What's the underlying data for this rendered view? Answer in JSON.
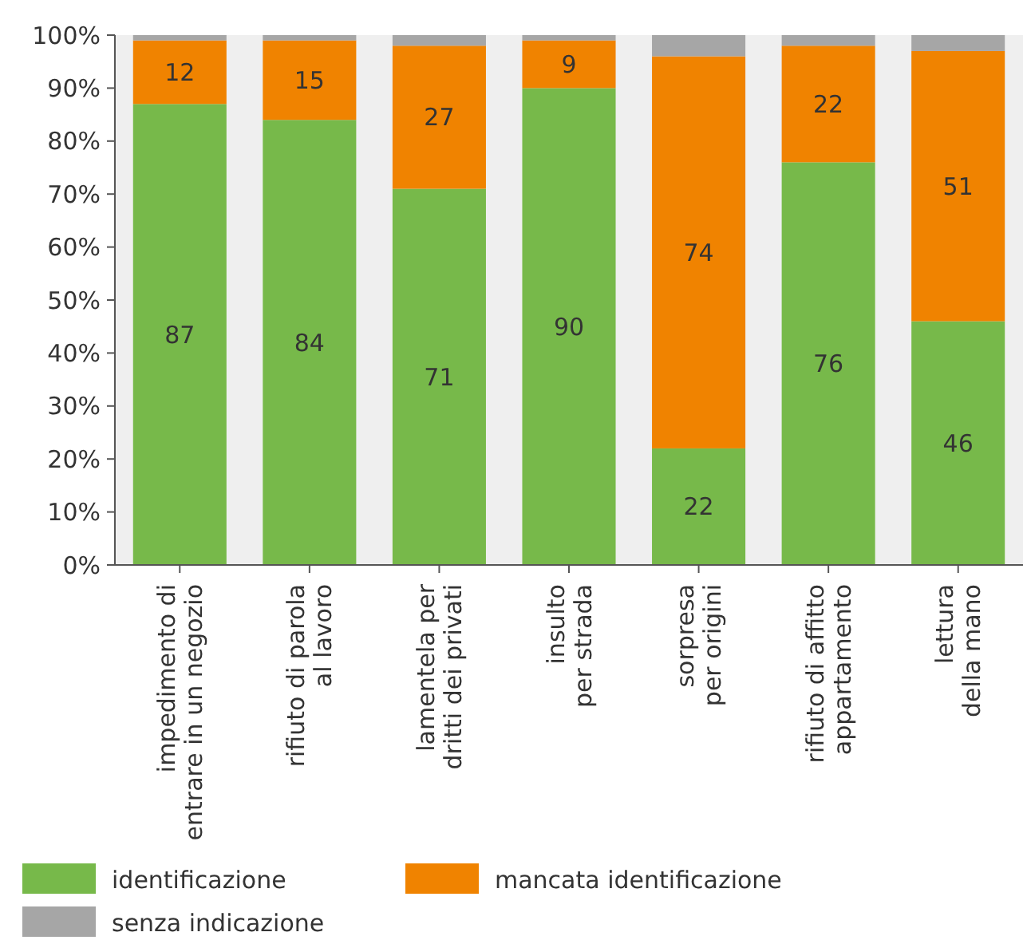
{
  "chart_data": {
    "type": "bar",
    "stacked": true,
    "categories": [
      "impedimento di\nentrare in un negozio",
      "rifiuto di parola\nal lavoro",
      "lamentela per\ndritti dei privati",
      "insulto\nper strada",
      "sorpresa\nper origini",
      "rifiuto di affitto\nappartamento",
      "lettura\ndella mano"
    ],
    "series": [
      {
        "name": "identificazione",
        "color": "#77b94a",
        "values": [
          87,
          84,
          71,
          90,
          22,
          76,
          46
        ],
        "value_labels": [
          "87",
          "84",
          "71",
          "90",
          "22",
          "76",
          "46"
        ]
      },
      {
        "name": "mancata identificazione",
        "color": "#f08300",
        "values": [
          12,
          15,
          27,
          9,
          74,
          22,
          51
        ],
        "value_labels": [
          "12",
          "15",
          "27",
          "9",
          "74",
          "22",
          "51"
        ]
      },
      {
        "name": "senza indicazione",
        "color": "#a6a6a6",
        "values": [
          1,
          1,
          2,
          1,
          4,
          2,
          3
        ]
      }
    ],
    "ylim": [
      0,
      100
    ],
    "yticks": [
      {
        "value": 0,
        "label": "0%"
      },
      {
        "value": 10,
        "label": "10%"
      },
      {
        "value": 20,
        "label": "20%"
      },
      {
        "value": 30,
        "label": "30%"
      },
      {
        "value": 40,
        "label": "40%"
      },
      {
        "value": 50,
        "label": "50%"
      },
      {
        "value": 60,
        "label": "60%"
      },
      {
        "value": 70,
        "label": "70%"
      },
      {
        "value": 80,
        "label": "80%"
      },
      {
        "value": 90,
        "label": "90%"
      },
      {
        "value": 100,
        "label": "100%"
      }
    ],
    "legend": "bottom"
  }
}
